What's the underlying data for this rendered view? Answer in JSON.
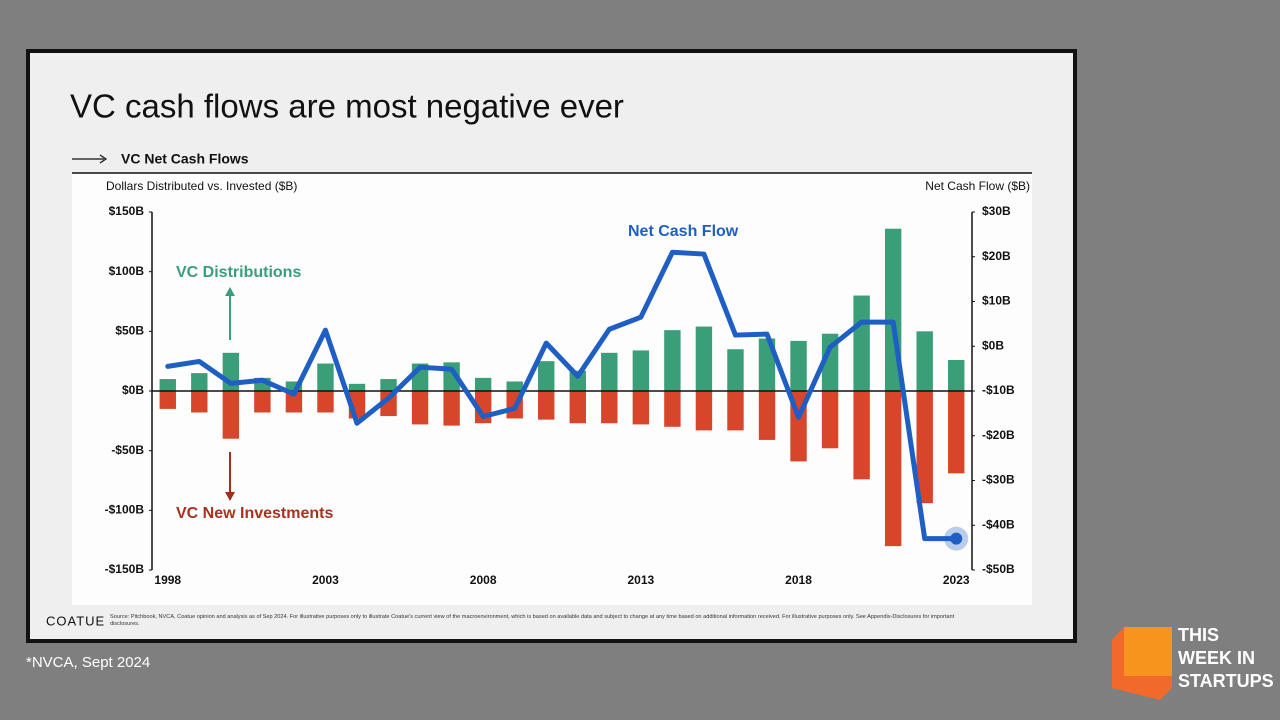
{
  "chart_data": {
    "type": "bar",
    "title": "VC cash flows are most negative ever",
    "subtitle": "VC Net Cash Flows",
    "ylabel": "Dollars Distributed vs. Invested ($B)",
    "y2label": "Net Cash Flow ($B)",
    "x": [
      1998,
      1999,
      2000,
      2001,
      2002,
      2003,
      2004,
      2005,
      2006,
      2007,
      2008,
      2009,
      2010,
      2011,
      2012,
      2013,
      2014,
      2015,
      2016,
      2017,
      2018,
      2019,
      2020,
      2021,
      2022,
      2023
    ],
    "xlim": [
      1997.5,
      2023.5
    ],
    "xticks": [
      1998,
      2003,
      2008,
      2013,
      2018,
      2023
    ],
    "ylim": [
      -150,
      150
    ],
    "yticks": [
      {
        "value": -150,
        "label": "-$150B"
      },
      {
        "value": -100,
        "label": "-$100B"
      },
      {
        "value": -50,
        "label": "-$50B"
      },
      {
        "value": 0,
        "label": "$0B"
      },
      {
        "value": 50,
        "label": "$50B"
      },
      {
        "value": 100,
        "label": "$100B"
      },
      {
        "value": 150,
        "label": "$150B"
      }
    ],
    "y2lim": [
      -50,
      30
    ],
    "y2ticks": [
      {
        "value": -50,
        "label": "-$50B"
      },
      {
        "value": -40,
        "label": "-$40B"
      },
      {
        "value": -30,
        "label": "-$30B"
      },
      {
        "value": -20,
        "label": "-$20B"
      },
      {
        "value": -10,
        "label": "-$10B"
      },
      {
        "value": 0,
        "label": "$0B"
      },
      {
        "value": 10,
        "label": "$10B"
      },
      {
        "value": 20,
        "label": "$20B"
      },
      {
        "value": 30,
        "label": "$30B"
      }
    ],
    "series": [
      {
        "name": "VC Distributions",
        "color": "#3a9e78",
        "values": [
          10,
          15,
          32,
          11,
          8,
          23,
          6,
          10,
          23,
          24,
          11,
          8,
          25,
          17,
          32,
          34,
          51,
          54,
          35,
          44,
          42,
          48,
          80,
          136,
          50,
          26
        ]
      },
      {
        "name": "VC New Investments",
        "color": "#d7452a",
        "values": [
          -15,
          -18,
          -40,
          -18,
          -18,
          -18,
          -23,
          -21,
          -28,
          -29,
          -27,
          -23,
          -24,
          -27,
          -27,
          -28,
          -30,
          -33,
          -33,
          -41,
          -59,
          -48,
          -74,
          -130,
          -94,
          -69
        ]
      },
      {
        "name": "Net Cash Flow",
        "color": "#1f5fc4",
        "type": "line",
        "axis": "y2",
        "values": [
          -4.5,
          -3.4,
          -8.3,
          -7.6,
          -10.7,
          3.6,
          -17.2,
          -11.6,
          -4.7,
          -5.1,
          -15.7,
          -13.9,
          0.7,
          -6.7,
          3.8,
          6.5,
          21,
          20.6,
          2.5,
          2.7,
          -15.9,
          -0.2,
          5.4,
          5.4,
          -43,
          -43
        ]
      }
    ]
  },
  "brand": "COATUE",
  "source": "Source: Pitchbook, NVCA, Coatue opinion and analysis as of Sep 2024. For illustrative purposes only to illustrate Coatue's current view of the macroenvironment, which is based on available data and subject to change at any time based on additional information received. For illustrative purposes only. See Appendix-Disclosures for important disclosures.",
  "footnote": "*NVCA, Sept 2024",
  "logo": [
    "THIS",
    "WEEK IN",
    "STARTUPS"
  ]
}
